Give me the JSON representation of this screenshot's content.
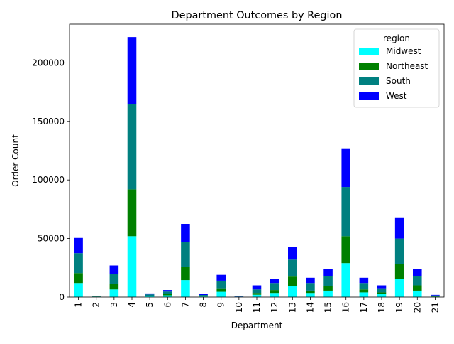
{
  "chart_data": {
    "type": "bar",
    "stacked": true,
    "title": "Department Outcomes by Region",
    "xlabel": "Department",
    "ylabel": "Order Count",
    "ylim": [
      0,
      233000
    ],
    "yticks": [
      0,
      50000,
      100000,
      150000,
      200000
    ],
    "ytick_labels": [
      "0",
      "50000",
      "100000",
      "150000",
      "200000"
    ],
    "categories": [
      "1",
      "2",
      "3",
      "4",
      "5",
      "6",
      "7",
      "8",
      "9",
      "10",
      "11",
      "12",
      "13",
      "14",
      "15",
      "16",
      "17",
      "18",
      "19",
      "20",
      "21"
    ],
    "legend": {
      "title": "region",
      "position": "top-right"
    },
    "grid": false,
    "series": [
      {
        "name": "Midwest",
        "color": "#00ffff",
        "values": [
          12000,
          200,
          6500,
          52000,
          600,
          1500,
          14500,
          500,
          4500,
          200,
          2000,
          3500,
          9500,
          3500,
          5500,
          29000,
          4000,
          2500,
          15500,
          5500,
          400
        ]
      },
      {
        "name": "Northeast",
        "color": "#008000",
        "values": [
          8500,
          200,
          5000,
          40000,
          400,
          1200,
          11500,
          400,
          3000,
          100,
          1500,
          2500,
          8000,
          2000,
          4000,
          23000,
          2500,
          1500,
          12500,
          4500,
          300
        ]
      },
      {
        "name": "South",
        "color": "#008080",
        "values": [
          17000,
          300,
          8500,
          73000,
          1300,
          2000,
          21000,
          900,
          6500,
          200,
          3000,
          6000,
          14500,
          6500,
          8500,
          42000,
          5500,
          3500,
          22000,
          8000,
          700
        ]
      },
      {
        "name": "West",
        "color": "#0000ff",
        "values": [
          13000,
          300,
          7000,
          57000,
          800,
          1300,
          15500,
          700,
          5000,
          200,
          3500,
          3500,
          11000,
          4500,
          6000,
          33000,
          4500,
          2500,
          17500,
          6000,
          500
        ]
      }
    ]
  }
}
